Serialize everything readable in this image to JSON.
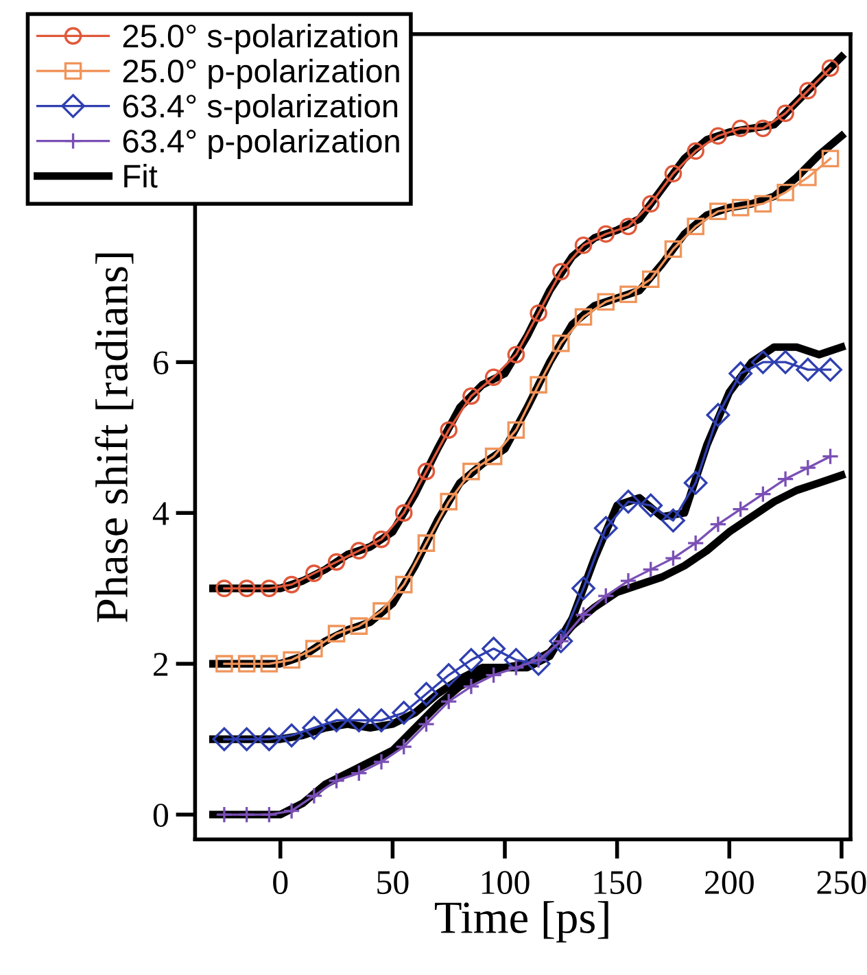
{
  "chart_data": {
    "type": "line",
    "xlabel": "Time [ps]",
    "ylabel": "Phase shift [radians]",
    "x": [
      -30,
      -20,
      -10,
      0,
      10,
      20,
      30,
      40,
      50,
      60,
      70,
      80,
      90,
      100,
      110,
      120,
      130,
      140,
      150,
      160,
      170,
      180,
      190,
      200,
      210,
      220,
      230,
      240,
      250
    ],
    "xlim": [
      -38,
      254
    ],
    "ylim": [
      -0.33,
      10.35
    ],
    "xticks": [
      0,
      50,
      100,
      150,
      200,
      250
    ],
    "yticks": [
      0,
      2,
      4,
      6
    ],
    "grid": false,
    "legend": "top left",
    "series": [
      {
        "name": "25.0° s-polarization",
        "color": "#e0583a",
        "marker": "circle",
        "x": [
          -25,
          -15,
          -5,
          5,
          15,
          25,
          35,
          45,
          55,
          65,
          75,
          85,
          95,
          105,
          115,
          125,
          135,
          145,
          155,
          165,
          175,
          185,
          195,
          205,
          215,
          225,
          235,
          245
        ],
        "values": [
          3.0,
          3.0,
          3.0,
          3.05,
          3.2,
          3.35,
          3.5,
          3.65,
          4.0,
          4.55,
          5.1,
          5.55,
          5.8,
          6.1,
          6.65,
          7.2,
          7.55,
          7.7,
          7.8,
          8.1,
          8.5,
          8.8,
          9.0,
          9.1,
          9.1,
          9.3,
          9.6,
          9.9
        ]
      },
      {
        "name": "25.0° p-polarization",
        "color": "#f0945a",
        "marker": "square",
        "x": [
          -25,
          -15,
          -5,
          5,
          15,
          25,
          35,
          45,
          55,
          65,
          75,
          85,
          95,
          105,
          115,
          125,
          135,
          145,
          155,
          165,
          175,
          185,
          195,
          205,
          215,
          225,
          235,
          245
        ],
        "values": [
          2.0,
          2.0,
          2.0,
          2.05,
          2.2,
          2.4,
          2.5,
          2.7,
          3.05,
          3.6,
          4.15,
          4.55,
          4.75,
          5.1,
          5.7,
          6.25,
          6.6,
          6.8,
          6.9,
          7.1,
          7.5,
          7.8,
          8.0,
          8.05,
          8.1,
          8.25,
          8.45,
          8.7
        ]
      },
      {
        "name": "63.4° s-polarization",
        "color": "#2f3fb0",
        "marker": "diamond",
        "x": [
          -25,
          -15,
          -5,
          5,
          15,
          25,
          35,
          45,
          55,
          65,
          75,
          85,
          95,
          105,
          115,
          125,
          135,
          145,
          155,
          165,
          175,
          185,
          195,
          205,
          215,
          225,
          235,
          245
        ],
        "values": [
          1.0,
          1.0,
          1.0,
          1.05,
          1.15,
          1.25,
          1.25,
          1.25,
          1.35,
          1.6,
          1.85,
          2.05,
          2.2,
          2.05,
          2.0,
          2.3,
          3.0,
          3.8,
          4.15,
          4.1,
          3.9,
          4.4,
          5.3,
          5.85,
          6.0,
          6.0,
          5.9,
          5.9
        ]
      },
      {
        "name": "63.4° p-polarization",
        "color": "#7a4fb5",
        "marker": "cross",
        "x": [
          -25,
          -15,
          -5,
          5,
          15,
          25,
          35,
          45,
          55,
          65,
          75,
          85,
          95,
          105,
          115,
          125,
          135,
          145,
          155,
          165,
          175,
          185,
          195,
          205,
          215,
          225,
          235,
          245
        ],
        "values": [
          0.0,
          0.0,
          0.0,
          0.05,
          0.25,
          0.45,
          0.55,
          0.7,
          0.9,
          1.2,
          1.5,
          1.7,
          1.85,
          1.95,
          2.05,
          2.3,
          2.65,
          2.9,
          3.1,
          3.25,
          3.4,
          3.6,
          3.85,
          4.05,
          4.25,
          4.45,
          4.6,
          4.75
        ]
      },
      {
        "name": "Fit",
        "color": "#000000",
        "marker": "none",
        "values": [
          3.0,
          3.0,
          3.0,
          3.0,
          3.1,
          3.25,
          3.45,
          3.55,
          3.75,
          4.25,
          4.85,
          5.4,
          5.7,
          5.85,
          6.35,
          6.95,
          7.4,
          7.65,
          7.75,
          7.9,
          8.3,
          8.7,
          8.95,
          9.05,
          9.1,
          9.15,
          9.45,
          9.75,
          10.05
        ]
      },
      {
        "color": "#000000",
        "marker": "none",
        "values": [
          2.0,
          2.0,
          2.0,
          2.0,
          2.1,
          2.3,
          2.45,
          2.55,
          2.8,
          3.3,
          3.9,
          4.4,
          4.65,
          4.85,
          5.4,
          6.0,
          6.5,
          6.75,
          6.85,
          6.95,
          7.3,
          7.7,
          7.95,
          8.05,
          8.1,
          8.2,
          8.45,
          8.75,
          9.0
        ]
      },
      {
        "color": "#000000",
        "marker": "none",
        "values": [
          1.0,
          1.0,
          1.0,
          1.0,
          1.05,
          1.15,
          1.2,
          1.15,
          1.2,
          1.35,
          1.6,
          1.8,
          1.95,
          1.95,
          1.95,
          2.1,
          2.6,
          3.4,
          4.1,
          4.2,
          3.95,
          4.0,
          4.9,
          5.6,
          6.0,
          6.2,
          6.2,
          6.1,
          6.2
        ]
      },
      {
        "color": "#000000",
        "marker": "none",
        "values": [
          0.0,
          0.0,
          0.0,
          0.0,
          0.15,
          0.4,
          0.55,
          0.7,
          0.85,
          1.15,
          1.45,
          1.7,
          1.85,
          1.95,
          2.0,
          2.15,
          2.5,
          2.75,
          2.95,
          3.05,
          3.15,
          3.3,
          3.5,
          3.75,
          3.95,
          4.15,
          4.3,
          4.4,
          4.5
        ]
      }
    ]
  }
}
